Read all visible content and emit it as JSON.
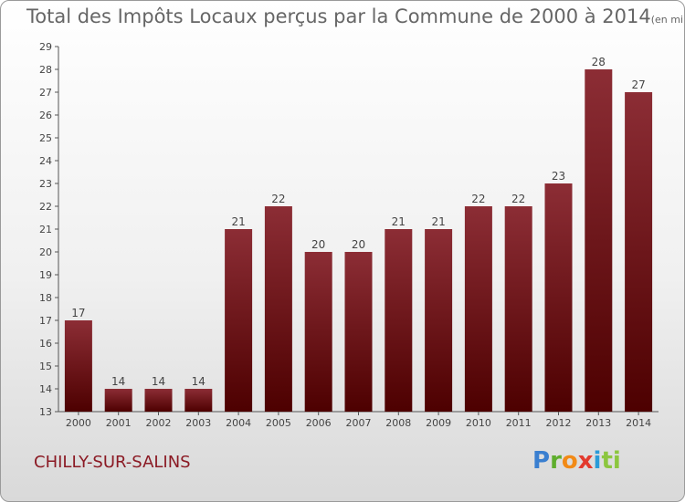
{
  "header": {
    "title": "Total des Impôts Locaux perçus par la Commune de 2000 à 2014",
    "unit": "(en milliers d'€)"
  },
  "footer": {
    "commune": "CHILLY-SUR-SALINS",
    "logo_letters": [
      "P",
      "r",
      "o",
      "x",
      "i",
      "ti"
    ]
  },
  "colors": {
    "bar_top": "#8c2d35",
    "bar_bottom": "#4d0000",
    "axis": "#555555",
    "label": "#444444"
  },
  "chart_data": {
    "type": "bar",
    "categories": [
      "2000",
      "2001",
      "2002",
      "2003",
      "2004",
      "2005",
      "2006",
      "2007",
      "2008",
      "2009",
      "2010",
      "2011",
      "2012",
      "2013",
      "2014"
    ],
    "values": [
      17,
      14,
      14,
      14,
      21,
      22,
      20,
      20,
      21,
      21,
      22,
      22,
      23,
      28,
      27
    ],
    "ylim": [
      13,
      29
    ],
    "yticks": [
      13,
      14,
      15,
      16,
      17,
      18,
      19,
      20,
      21,
      22,
      23,
      24,
      25,
      26,
      27,
      28,
      29
    ],
    "grid": false,
    "legend": "none"
  }
}
